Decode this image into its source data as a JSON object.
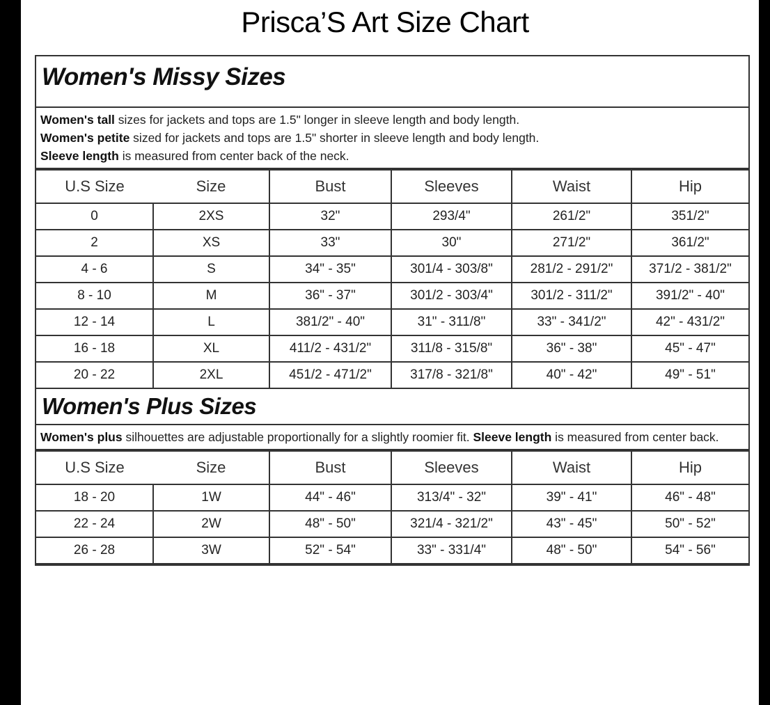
{
  "title": "Prisca’S Art Size Chart",
  "columns": [
    "U.S Size",
    "Size",
    "Bust",
    "Sleeves",
    "Waist",
    "Hip"
  ],
  "missy": {
    "heading": "Women's Missy Sizes",
    "notes": [
      {
        "bold": "Women's tall",
        "text": " sizes for jackets and tops are 1.5\" longer in sleeve length and body length."
      },
      {
        "bold": "Women's petite",
        "text": " sized for jackets and tops are 1.5\" shorter in sleeve length and body length."
      },
      {
        "bold": "Sleeve length",
        "text": " is measured from center back of the neck."
      }
    ],
    "rows": [
      [
        "0",
        "2XS",
        "32\"",
        "293/4\"",
        "261/2\"",
        "351/2\""
      ],
      [
        "2",
        "XS",
        "33\"",
        "30\"",
        "271/2\"",
        "361/2\""
      ],
      [
        "4 - 6",
        "S",
        "34\" - 35\"",
        "301/4 - 303/8\"",
        "281/2 - 291/2\"",
        "371/2 - 381/2\""
      ],
      [
        "8 - 10",
        "M",
        "36\" - 37\"",
        "301/2 - 303/4\"",
        "301/2 - 311/2\"",
        "391/2\" - 40\""
      ],
      [
        "12 - 14",
        "L",
        "381/2\" - 40\"",
        "31\" - 311/8\"",
        "33\" - 341/2\"",
        "42\" - 431/2\""
      ],
      [
        "16 - 18",
        "XL",
        "411/2 - 431/2\"",
        "311/8 - 315/8\"",
        "36\" - 38\"",
        "45\" - 47\""
      ],
      [
        "20 - 22",
        "2XL",
        "451/2 - 471/2\"",
        "317/8 - 321/8\"",
        "40\" - 42\"",
        "49\" - 51\""
      ]
    ]
  },
  "plus": {
    "heading": "Women's Plus Sizes",
    "note": {
      "bold1": "Women's plus",
      "text1": " silhouettes are adjustable proportionally for a slightly roomier fit. ",
      "bold2": "Sleeve length",
      "text2": " is measured from center back."
    },
    "rows": [
      [
        "18 - 20",
        "1W",
        "44\" - 46\"",
        "313/4\" - 32\"",
        "39\" - 41\"",
        "46\" - 48\""
      ],
      [
        "22 - 24",
        "2W",
        "48\" - 50\"",
        "321/4 - 321/2\"",
        "43\" - 45\"",
        "50\" - 52\""
      ],
      [
        "26 - 28",
        "3W",
        "52\" - 54\"",
        "33\" - 331/4\"",
        "48\" - 50\"",
        "54\" - 56\""
      ]
    ]
  }
}
